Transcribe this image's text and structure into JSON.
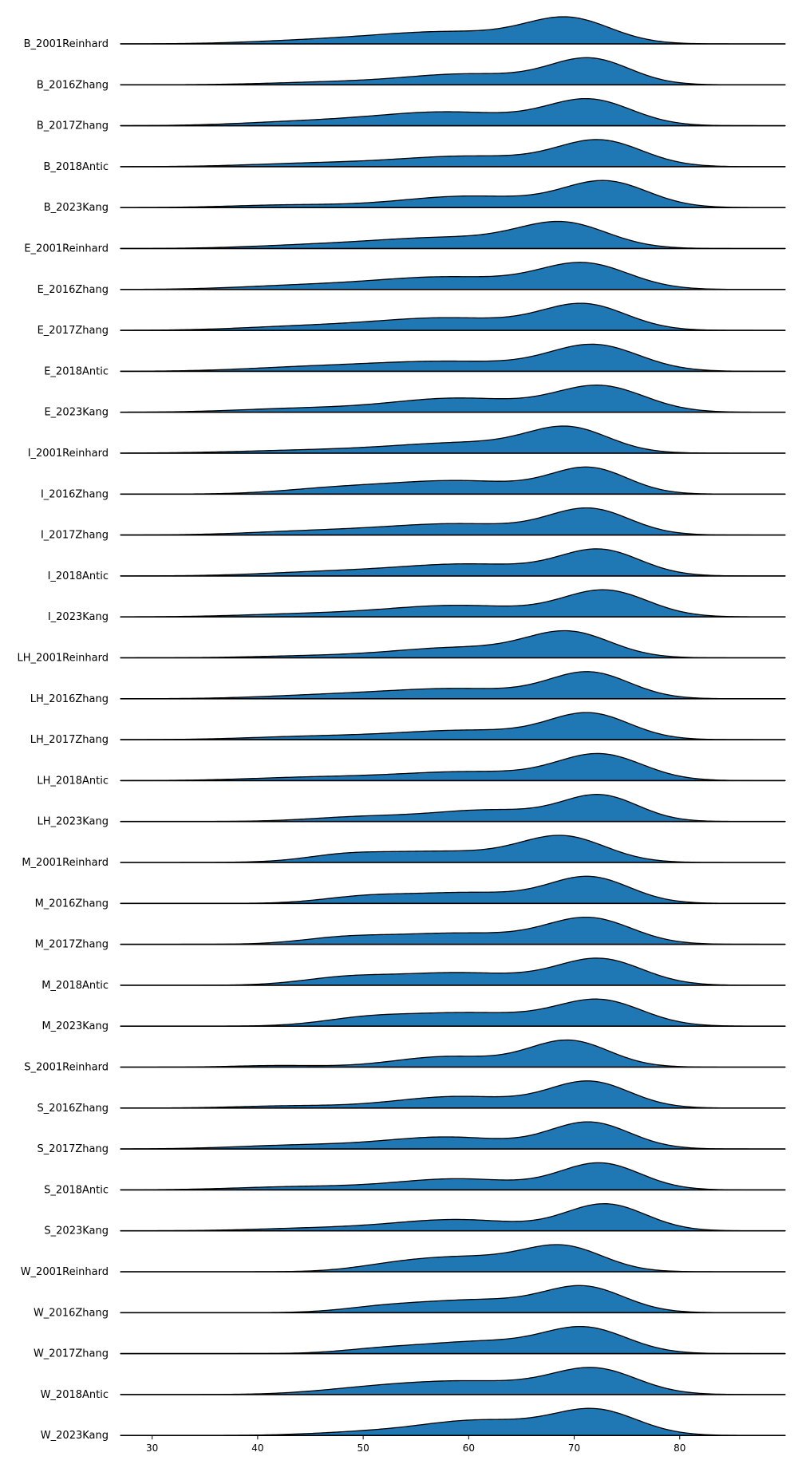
{
  "chart_data": {
    "type": "ridgeline",
    "fill_color": "#1f77b4",
    "line_color": "#000000",
    "xlim": [
      27,
      90
    ],
    "xticks": [
      30,
      40,
      50,
      60,
      70,
      80
    ],
    "xtick_labels": [
      "30",
      "40",
      "50",
      "60",
      "70",
      "80"
    ],
    "grid": false,
    "ridges": [
      {
        "name": "B_2001Reinhard",
        "peak": 69.5,
        "components": [
          {
            "mu": 69.5,
            "sigma": 4.0,
            "w": 1.0
          },
          {
            "mu": 58.0,
            "sigma": 7.0,
            "w": 0.5
          },
          {
            "mu": 45.0,
            "sigma": 6.0,
            "w": 0.12
          }
        ]
      },
      {
        "name": "B_2016Zhang",
        "peak": 71.5,
        "components": [
          {
            "mu": 71.5,
            "sigma": 3.8,
            "w": 1.0
          },
          {
            "mu": 60.0,
            "sigma": 6.0,
            "w": 0.42
          },
          {
            "mu": 47.0,
            "sigma": 6.0,
            "w": 0.1
          }
        ]
      },
      {
        "name": "B_2017Zhang",
        "peak": 71.5,
        "components": [
          {
            "mu": 71.5,
            "sigma": 4.0,
            "w": 1.0
          },
          {
            "mu": 58.0,
            "sigma": 7.0,
            "w": 0.55
          },
          {
            "mu": 44.0,
            "sigma": 6.0,
            "w": 0.14
          }
        ]
      },
      {
        "name": "B_2018Antic",
        "peak": 72.5,
        "components": [
          {
            "mu": 72.5,
            "sigma": 4.0,
            "w": 1.0
          },
          {
            "mu": 60.0,
            "sigma": 7.0,
            "w": 0.42
          },
          {
            "mu": 45.0,
            "sigma": 6.0,
            "w": 0.12
          }
        ]
      },
      {
        "name": "B_2023Kang",
        "peak": 73.0,
        "components": [
          {
            "mu": 73.0,
            "sigma": 4.0,
            "w": 1.0
          },
          {
            "mu": 60.0,
            "sigma": 6.5,
            "w": 0.45
          },
          {
            "mu": 43.0,
            "sigma": 5.5,
            "w": 0.1
          }
        ]
      },
      {
        "name": "E_2001Reinhard",
        "peak": 69.0,
        "components": [
          {
            "mu": 69.0,
            "sigma": 4.2,
            "w": 1.0
          },
          {
            "mu": 58.0,
            "sigma": 7.0,
            "w": 0.45
          },
          {
            "mu": 45.0,
            "sigma": 6.0,
            "w": 0.12
          }
        ]
      },
      {
        "name": "E_2016Zhang",
        "peak": 71.0,
        "components": [
          {
            "mu": 71.0,
            "sigma": 4.2,
            "w": 1.0
          },
          {
            "mu": 58.0,
            "sigma": 7.0,
            "w": 0.5
          },
          {
            "mu": 44.0,
            "sigma": 6.0,
            "w": 0.14
          }
        ]
      },
      {
        "name": "E_2017Zhang",
        "peak": 71.0,
        "components": [
          {
            "mu": 71.0,
            "sigma": 4.0,
            "w": 1.0
          },
          {
            "mu": 58.0,
            "sigma": 7.0,
            "w": 0.5
          },
          {
            "mu": 44.0,
            "sigma": 6.0,
            "w": 0.14
          }
        ]
      },
      {
        "name": "E_2018Antic",
        "peak": 72.0,
        "components": [
          {
            "mu": 72.0,
            "sigma": 4.2,
            "w": 1.0
          },
          {
            "mu": 58.0,
            "sigma": 8.0,
            "w": 0.4
          },
          {
            "mu": 44.0,
            "sigma": 6.0,
            "w": 0.12
          }
        ]
      },
      {
        "name": "E_2023Kang",
        "peak": 72.5,
        "components": [
          {
            "mu": 72.5,
            "sigma": 4.2,
            "w": 1.0
          },
          {
            "mu": 59.0,
            "sigma": 6.5,
            "w": 0.55
          },
          {
            "mu": 44.0,
            "sigma": 6.0,
            "w": 0.14
          }
        ]
      },
      {
        "name": "I_2001Reinhard",
        "peak": 69.5,
        "components": [
          {
            "mu": 69.5,
            "sigma": 3.8,
            "w": 1.0
          },
          {
            "mu": 60.0,
            "sigma": 7.0,
            "w": 0.45
          },
          {
            "mu": 45.0,
            "sigma": 7.0,
            "w": 0.12
          }
        ]
      },
      {
        "name": "I_2016Zhang",
        "peak": 71.5,
        "components": [
          {
            "mu": 71.5,
            "sigma": 3.6,
            "w": 1.0
          },
          {
            "mu": 59.0,
            "sigma": 7.0,
            "w": 0.55
          },
          {
            "mu": 47.0,
            "sigma": 5.0,
            "w": 0.18
          }
        ]
      },
      {
        "name": "I_2017Zhang",
        "peak": 71.5,
        "components": [
          {
            "mu": 71.5,
            "sigma": 3.8,
            "w": 1.0
          },
          {
            "mu": 59.0,
            "sigma": 7.0,
            "w": 0.45
          },
          {
            "mu": 45.0,
            "sigma": 6.0,
            "w": 0.14
          }
        ]
      },
      {
        "name": "I_2018Antic",
        "peak": 72.5,
        "components": [
          {
            "mu": 72.5,
            "sigma": 3.8,
            "w": 1.0
          },
          {
            "mu": 60.0,
            "sigma": 7.0,
            "w": 0.48
          },
          {
            "mu": 46.0,
            "sigma": 6.0,
            "w": 0.14
          }
        ]
      },
      {
        "name": "I_2023Kang",
        "peak": 73.0,
        "components": [
          {
            "mu": 73.0,
            "sigma": 4.0,
            "w": 1.0
          },
          {
            "mu": 59.0,
            "sigma": 7.0,
            "w": 0.45
          },
          {
            "mu": 44.0,
            "sigma": 6.0,
            "w": 0.1
          }
        ]
      },
      {
        "name": "LH_2001Reinhard",
        "peak": 69.5,
        "components": [
          {
            "mu": 69.5,
            "sigma": 4.0,
            "w": 1.0
          },
          {
            "mu": 59.0,
            "sigma": 6.0,
            "w": 0.4
          },
          {
            "mu": 46.0,
            "sigma": 6.0,
            "w": 0.08
          }
        ]
      },
      {
        "name": "LH_2016Zhang",
        "peak": 71.5,
        "components": [
          {
            "mu": 71.5,
            "sigma": 3.8,
            "w": 1.0
          },
          {
            "mu": 59.0,
            "sigma": 7.0,
            "w": 0.4
          },
          {
            "mu": 46.0,
            "sigma": 6.0,
            "w": 0.12
          }
        ]
      },
      {
        "name": "LH_2017Zhang",
        "peak": 71.5,
        "components": [
          {
            "mu": 71.5,
            "sigma": 3.8,
            "w": 1.0
          },
          {
            "mu": 60.0,
            "sigma": 7.0,
            "w": 0.38
          },
          {
            "mu": 45.0,
            "sigma": 6.0,
            "w": 0.12
          }
        ]
      },
      {
        "name": "LH_2018Antic",
        "peak": 72.5,
        "components": [
          {
            "mu": 72.5,
            "sigma": 4.0,
            "w": 1.0
          },
          {
            "mu": 60.0,
            "sigma": 7.0,
            "w": 0.35
          },
          {
            "mu": 45.0,
            "sigma": 6.0,
            "w": 0.12
          }
        ]
      },
      {
        "name": "LH_2023Kang",
        "peak": 72.5,
        "components": [
          {
            "mu": 72.5,
            "sigma": 3.6,
            "w": 1.0
          },
          {
            "mu": 62.0,
            "sigma": 5.5,
            "w": 0.45
          },
          {
            "mu": 50.0,
            "sigma": 5.0,
            "w": 0.18
          }
        ]
      },
      {
        "name": "M_2001Reinhard",
        "peak": 69.0,
        "components": [
          {
            "mu": 69.0,
            "sigma": 4.0,
            "w": 1.0
          },
          {
            "mu": 57.0,
            "sigma": 7.0,
            "w": 0.45
          },
          {
            "mu": 48.0,
            "sigma": 3.5,
            "w": 0.18
          }
        ]
      },
      {
        "name": "M_2016Zhang",
        "peak": 71.5,
        "components": [
          {
            "mu": 71.5,
            "sigma": 3.8,
            "w": 1.0
          },
          {
            "mu": 60.0,
            "sigma": 6.0,
            "w": 0.42
          },
          {
            "mu": 50.0,
            "sigma": 4.0,
            "w": 0.22
          }
        ]
      },
      {
        "name": "M_2017Zhang",
        "peak": 71.5,
        "components": [
          {
            "mu": 71.5,
            "sigma": 4.0,
            "w": 1.0
          },
          {
            "mu": 59.0,
            "sigma": 7.0,
            "w": 0.45
          },
          {
            "mu": 48.0,
            "sigma": 4.0,
            "w": 0.2
          }
        ]
      },
      {
        "name": "M_2018Antic",
        "peak": 72.5,
        "components": [
          {
            "mu": 72.5,
            "sigma": 4.0,
            "w": 1.0
          },
          {
            "mu": 59.0,
            "sigma": 7.0,
            "w": 0.5
          },
          {
            "mu": 48.0,
            "sigma": 4.0,
            "w": 0.22
          }
        ]
      },
      {
        "name": "M_2023Kang",
        "peak": 72.5,
        "components": [
          {
            "mu": 72.5,
            "sigma": 4.0,
            "w": 1.0
          },
          {
            "mu": 60.0,
            "sigma": 7.0,
            "w": 0.55
          },
          {
            "mu": 50.0,
            "sigma": 4.0,
            "w": 0.22
          }
        ]
      },
      {
        "name": "S_2001Reinhard",
        "peak": 69.5,
        "components": [
          {
            "mu": 69.5,
            "sigma": 3.8,
            "w": 1.0
          },
          {
            "mu": 58.0,
            "sigma": 5.0,
            "w": 0.4
          },
          {
            "mu": 42.0,
            "sigma": 4.0,
            "w": 0.06
          }
        ]
      },
      {
        "name": "S_2016Zhang",
        "peak": 71.5,
        "components": [
          {
            "mu": 71.5,
            "sigma": 3.8,
            "w": 1.0
          },
          {
            "mu": 59.0,
            "sigma": 6.0,
            "w": 0.45
          },
          {
            "mu": 43.0,
            "sigma": 5.0,
            "w": 0.08
          }
        ]
      },
      {
        "name": "S_2017Zhang",
        "peak": 71.5,
        "components": [
          {
            "mu": 71.5,
            "sigma": 3.8,
            "w": 1.0
          },
          {
            "mu": 58.0,
            "sigma": 6.0,
            "w": 0.45
          },
          {
            "mu": 44.0,
            "sigma": 6.0,
            "w": 0.14
          }
        ]
      },
      {
        "name": "S_2018Antic",
        "peak": 72.5,
        "components": [
          {
            "mu": 72.5,
            "sigma": 3.8,
            "w": 1.0
          },
          {
            "mu": 59.0,
            "sigma": 6.0,
            "w": 0.42
          },
          {
            "mu": 44.0,
            "sigma": 6.0,
            "w": 0.12
          }
        ]
      },
      {
        "name": "S_2023Kang",
        "peak": 73.0,
        "components": [
          {
            "mu": 73.0,
            "sigma": 3.8,
            "w": 1.0
          },
          {
            "mu": 59.0,
            "sigma": 6.0,
            "w": 0.42
          },
          {
            "mu": 46.0,
            "sigma": 6.0,
            "w": 0.1
          }
        ]
      },
      {
        "name": "W_2001Reinhard",
        "peak": 69.0,
        "components": [
          {
            "mu": 69.0,
            "sigma": 3.8,
            "w": 1.0
          },
          {
            "mu": 60.0,
            "sigma": 5.0,
            "w": 0.55
          },
          {
            "mu": 53.0,
            "sigma": 4.0,
            "w": 0.22
          }
        ]
      },
      {
        "name": "W_2016Zhang",
        "peak": 71.0,
        "components": [
          {
            "mu": 71.0,
            "sigma": 3.8,
            "w": 1.0
          },
          {
            "mu": 61.0,
            "sigma": 5.5,
            "w": 0.5
          },
          {
            "mu": 52.0,
            "sigma": 4.0,
            "w": 0.2
          }
        ]
      },
      {
        "name": "W_2017Zhang",
        "peak": 71.0,
        "components": [
          {
            "mu": 71.0,
            "sigma": 4.0,
            "w": 1.0
          },
          {
            "mu": 61.0,
            "sigma": 5.0,
            "w": 0.45
          },
          {
            "mu": 52.0,
            "sigma": 4.0,
            "w": 0.18
          }
        ]
      },
      {
        "name": "W_2018Antic",
        "peak": 72.0,
        "components": [
          {
            "mu": 72.0,
            "sigma": 4.0,
            "w": 1.0
          },
          {
            "mu": 60.0,
            "sigma": 7.0,
            "w": 0.55
          },
          {
            "mu": 50.0,
            "sigma": 5.0,
            "w": 0.15
          }
        ]
      },
      {
        "name": "W_2023Kang",
        "peak": 72.0,
        "components": [
          {
            "mu": 72.0,
            "sigma": 4.0,
            "w": 1.0
          },
          {
            "mu": 61.0,
            "sigma": 5.5,
            "w": 0.6
          },
          {
            "mu": 50.0,
            "sigma": 5.0,
            "w": 0.12
          }
        ]
      }
    ]
  }
}
